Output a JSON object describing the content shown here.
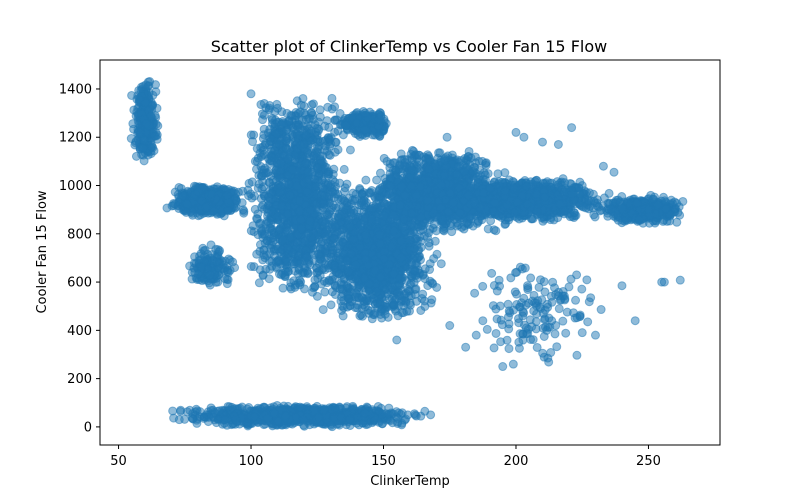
{
  "chart_data": {
    "type": "scatter",
    "title": "Scatter plot of ClinkerTemp vs Cooler Fan 15 Flow",
    "xlabel": "ClinkerTemp",
    "ylabel": "Cooler Fan 15 Flow",
    "xlim": [
      43,
      277
    ],
    "ylim": [
      -75,
      1520
    ],
    "xticks": [
      50,
      100,
      150,
      200,
      250
    ],
    "yticks": [
      0,
      200,
      400,
      600,
      800,
      1000,
      1200,
      1400
    ],
    "grid": false,
    "legend": "none",
    "color": "#1f77b4",
    "alpha": 0.5,
    "clusters": [
      {
        "x_range": [
          54,
          66
        ],
        "y_range": [
          1100,
          1450
        ],
        "density": 260
      },
      {
        "x_range": [
          66,
          100
        ],
        "y_range": [
          870,
          1000
        ],
        "density": 500
      },
      {
        "x_range": [
          75,
          95
        ],
        "y_range": [
          570,
          760
        ],
        "density": 140
      },
      {
        "x_range": [
          95,
          140
        ],
        "y_range": [
          540,
          1380
        ],
        "density": 1400
      },
      {
        "x_range": [
          130,
          155
        ],
        "y_range": [
          1200,
          1310
        ],
        "density": 260
      },
      {
        "x_range": [
          120,
          175
        ],
        "y_range": [
          440,
          1000
        ],
        "density": 1400
      },
      {
        "x_range": [
          140,
          200
        ],
        "y_range": [
          800,
          1150
        ],
        "density": 1300
      },
      {
        "x_range": [
          170,
          240
        ],
        "y_range": [
          850,
          1030
        ],
        "density": 900
      },
      {
        "x_range": [
          230,
          267
        ],
        "y_range": [
          840,
          960
        ],
        "density": 420
      },
      {
        "x_range": [
          180,
          235
        ],
        "y_range": [
          250,
          700
        ],
        "density": 140
      },
      {
        "x_range": [
          65,
          175
        ],
        "y_range": [
          0,
          90
        ],
        "density": 900
      }
    ],
    "points": [
      [
        262,
        608
      ],
      [
        255,
        600
      ],
      [
        240,
        585
      ],
      [
        220,
        580
      ],
      [
        225,
        1000
      ],
      [
        233,
        1080
      ],
      [
        237,
        1055
      ],
      [
        200,
        1220
      ],
      [
        210,
        1180
      ],
      [
        216,
        1170
      ],
      [
        221,
        1240
      ],
      [
        203,
        1200
      ],
      [
        155,
        360
      ],
      [
        195,
        250
      ],
      [
        199,
        260
      ],
      [
        181,
        330
      ],
      [
        175,
        420
      ],
      [
        185,
        380
      ],
      [
        215,
        420
      ],
      [
        230,
        380
      ],
      [
        245,
        440
      ],
      [
        256,
        600
      ],
      [
        100,
        1380
      ],
      [
        105,
        1340
      ],
      [
        110,
        1320
      ],
      [
        120,
        1300
      ],
      [
        143,
        1300
      ],
      [
        149,
        1290
      ],
      [
        174,
        1200
      ],
      [
        186,
        1100
      ]
    ]
  }
}
